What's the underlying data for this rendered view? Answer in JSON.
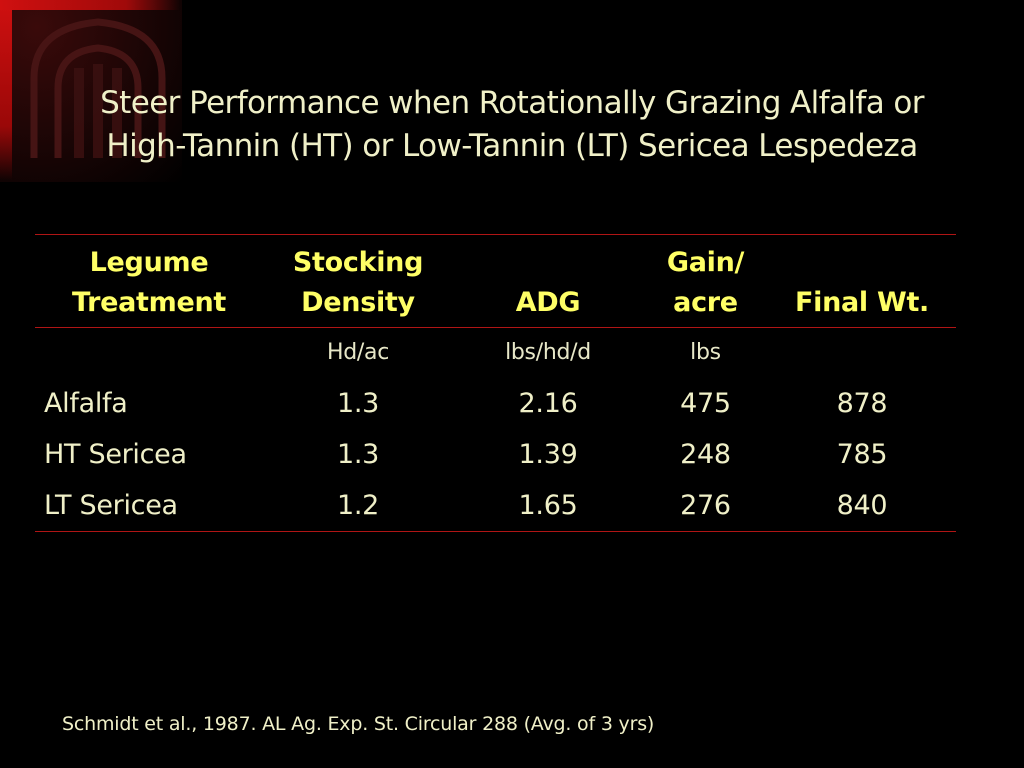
{
  "title": {
    "line1": "Steer Performance when Rotationally Grazing Alfalfa or",
    "line2": "High-Tannin (HT) or Low-Tannin (LT) Sericea Lespedeza"
  },
  "table": {
    "headers": [
      {
        "line1": "Legume",
        "line2": "Treatment"
      },
      {
        "line1": "Stocking",
        "line2": "Density"
      },
      {
        "line1": "",
        "line2": "ADG"
      },
      {
        "line1": "Gain/",
        "line2": "acre"
      },
      {
        "line1": "",
        "line2": "Final Wt."
      }
    ],
    "units": [
      "",
      "Hd/ac",
      "lbs/hd/d",
      "lbs",
      ""
    ],
    "rows": [
      [
        "Alfalfa",
        "1.3",
        "2.16",
        "475",
        "878"
      ],
      [
        "HT Sericea",
        "1.3",
        "1.39",
        "248",
        "785"
      ],
      [
        "LT Sericea",
        "1.2",
        "1.65",
        "276",
        "840"
      ]
    ]
  },
  "source": "Schmidt et al., 1987. AL Ag. Exp. St. Circular 288 (Avg. of 3 yrs)",
  "colors": {
    "background": "#000000",
    "header_text": "#ffff66",
    "body_text": "#f0f0c8",
    "rule": "#b01515",
    "accent_red": "#d01010"
  },
  "icons": {
    "corner_logo": "university-arch-logo"
  }
}
